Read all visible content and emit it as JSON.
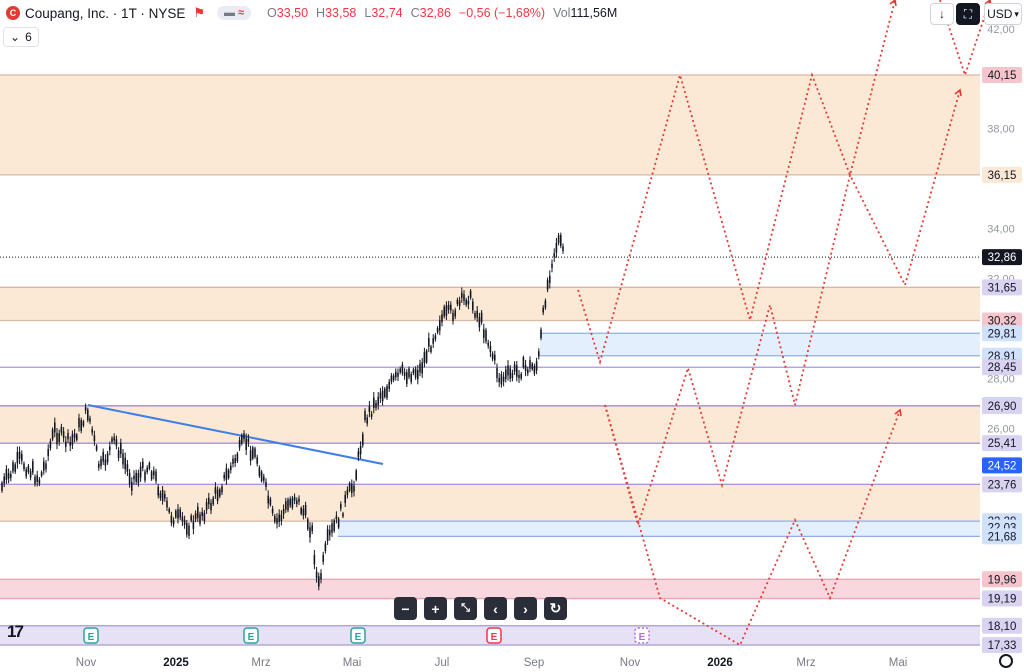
{
  "header": {
    "symbol_title": "Coupang, Inc. · 1T · NYSE",
    "logo_letter": "C",
    "open_label": "O",
    "open": "33,50",
    "high_label": "H",
    "high": "33,58",
    "low_label": "L",
    "low": "32,74",
    "close_label": "C",
    "close": "32,86",
    "change": "−0,56 (−1,68%)",
    "vol_label": "Vol",
    "vol": "111,56",
    "vol_unit": "M",
    "indicator_count": "6",
    "currency": "USD"
  },
  "colors": {
    "zone_orange": "#fbe9d6",
    "zone_orange_line": "#d9b7a4",
    "zone_blue": "#e3effd",
    "zone_blue_line": "#8fb0e6",
    "zone_pink": "#f9d7de",
    "zone_purple": "#e7e1f6",
    "projection": "#e53935",
    "trendline": "#3f7ee8",
    "candle": "#131722"
  },
  "price_axis": {
    "plain_ticks": [
      "42,00",
      "38,00",
      "34,00",
      "32,00",
      "28,00",
      "26,00"
    ],
    "plain_tick_values": [
      42,
      38,
      34,
      32,
      28,
      26
    ],
    "labels": [
      {
        "text": "40,15",
        "value": 40.15,
        "kind": "pink"
      },
      {
        "text": "36,15",
        "value": 36.15,
        "kind": "orange"
      },
      {
        "text": "32,86",
        "value": 32.86,
        "kind": "black"
      },
      {
        "text": "31,65",
        "value": 31.65,
        "kind": "purple"
      },
      {
        "text": "30,32",
        "value": 30.32,
        "kind": "pink"
      },
      {
        "text": "29,81",
        "value": 29.81,
        "kind": "lightblue"
      },
      {
        "text": "28,91",
        "value": 28.91,
        "kind": "lightblue"
      },
      {
        "text": "28,45",
        "value": 28.45,
        "kind": "purple"
      },
      {
        "text": "26,91",
        "value": 26.91,
        "kind": "blue"
      },
      {
        "text": "26,90",
        "value": 26.9,
        "kind": "purple"
      },
      {
        "text": "25,41",
        "value": 25.41,
        "kind": "purple"
      },
      {
        "text": "24,52",
        "value": 24.52,
        "kind": "blue"
      },
      {
        "text": "23,76",
        "value": 23.76,
        "kind": "purple"
      },
      {
        "text": "22,29",
        "value": 22.29,
        "kind": "lightblue"
      },
      {
        "text": "22,03",
        "value": 22.03,
        "kind": "lightblue"
      },
      {
        "text": "21,68",
        "value": 21.68,
        "kind": "lightblue"
      },
      {
        "text": "19,96",
        "value": 19.96,
        "kind": "pink"
      },
      {
        "text": "19,19",
        "value": 19.19,
        "kind": "purple"
      },
      {
        "text": "18,10",
        "value": 18.1,
        "kind": "purple"
      },
      {
        "text": "17,33",
        "value": 17.33,
        "kind": "purple"
      }
    ]
  },
  "time_axis": {
    "labels": [
      "Nov",
      "2025",
      "Mrz",
      "Mai",
      "Jul",
      "Sep",
      "Nov",
      "2026",
      "Mrz",
      "Mai"
    ],
    "bold": [
      false,
      true,
      false,
      false,
      false,
      false,
      false,
      true,
      false,
      false
    ]
  },
  "zones": [
    {
      "top": 40.15,
      "bottom": 36.15,
      "kind": "orange"
    },
    {
      "top": 31.65,
      "bottom": 30.32,
      "kind": "orange"
    },
    {
      "top": 29.81,
      "bottom": 28.91,
      "kind": "blue"
    },
    {
      "top": 26.91,
      "bottom": 25.41,
      "kind": "orange"
    },
    {
      "top": 23.76,
      "bottom": 22.29,
      "kind": "orange"
    },
    {
      "top": 22.29,
      "bottom": 21.68,
      "kind": "blue"
    },
    {
      "top": 19.96,
      "bottom": 19.19,
      "kind": "pink"
    },
    {
      "top": 18.1,
      "bottom": 17.33,
      "kind": "purple"
    }
  ],
  "events": [
    {
      "label": "E",
      "type": "earnings",
      "style": "green",
      "month": "Nov"
    },
    {
      "label": "E",
      "type": "earnings",
      "style": "green",
      "month": "Mrz"
    },
    {
      "label": "E",
      "type": "earnings",
      "style": "green",
      "month": "Mai"
    },
    {
      "label": "E",
      "type": "earnings",
      "style": "red",
      "month": "Aug"
    },
    {
      "label": "E",
      "type": "earnings",
      "style": "purple-dashed",
      "month": "Nov"
    }
  ],
  "nav_buttons": [
    "−",
    "+",
    "reset-zoom",
    "‹",
    "›",
    "reload"
  ]
}
